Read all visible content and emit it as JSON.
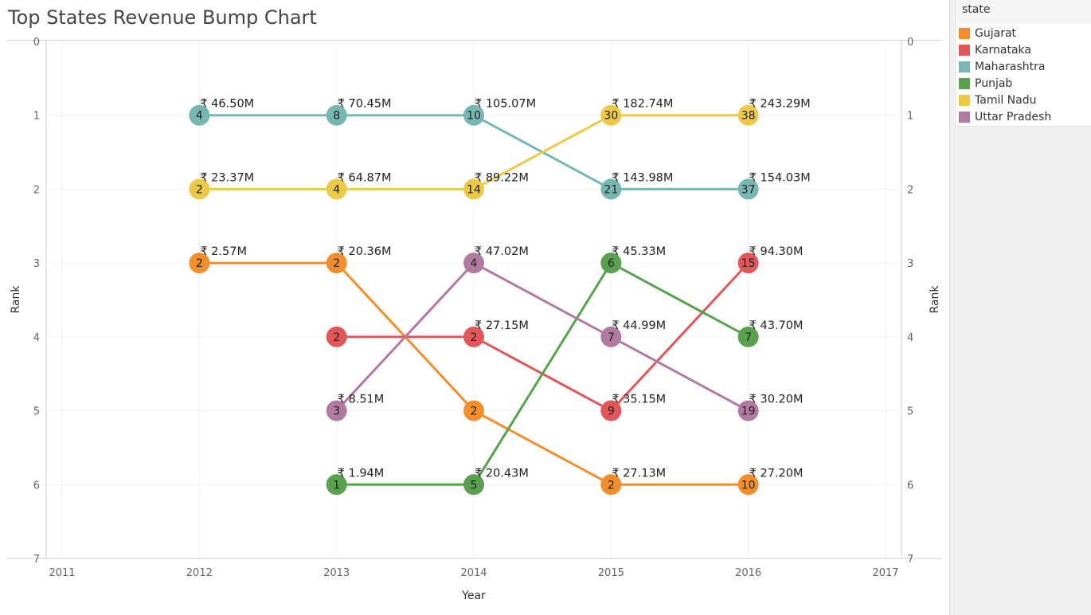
{
  "title": "Top States Revenue Bump Chart",
  "legend": {
    "title": "state",
    "items": [
      {
        "label": "Gujarat",
        "color": "#f28e2b"
      },
      {
        "label": "Karnataka",
        "color": "#e15759"
      },
      {
        "label": "Maharashtra",
        "color": "#76b7b2"
      },
      {
        "label": "Punjab",
        "color": "#59a14f"
      },
      {
        "label": "Tamil Nadu",
        "color": "#edc948"
      },
      {
        "label": "Uttar Pradesh",
        "color": "#b07aa1"
      }
    ]
  },
  "chart_data": {
    "type": "line",
    "xlabel": "Year",
    "ylabel": "Rank",
    "xlim": [
      2011,
      2017
    ],
    "ylim": [
      0,
      7
    ],
    "y_reversed": true,
    "dual_y_axis": true,
    "x_ticks": [
      "2011",
      "2012",
      "2013",
      "2014",
      "2015",
      "2016",
      "2017"
    ],
    "y_ticks": [
      "0",
      "1",
      "2",
      "3",
      "4",
      "5",
      "6",
      "7"
    ],
    "grid": true,
    "legend_position": "right",
    "series": [
      {
        "name": "Gujarat",
        "points": [
          {
            "x": 2012,
            "rank": 3,
            "count": "2",
            "revenue": "₹ 2.57M"
          },
          {
            "x": 2013,
            "rank": 3,
            "count": "2",
            "revenue": "₹ 20.36M"
          },
          {
            "x": 2014,
            "rank": 5,
            "count": "2",
            "revenue": ""
          },
          {
            "x": 2015,
            "rank": 6,
            "count": "2",
            "revenue": "₹ 27.13M"
          },
          {
            "x": 2016,
            "rank": 6,
            "count": "10",
            "revenue": "₹ 27.20M"
          }
        ]
      },
      {
        "name": "Karnataka",
        "points": [
          {
            "x": 2013,
            "rank": 4,
            "count": "2",
            "revenue": ""
          },
          {
            "x": 2014,
            "rank": 4,
            "count": "2",
            "revenue": "₹ 27.15M"
          },
          {
            "x": 2015,
            "rank": 5,
            "count": "9",
            "revenue": "₹ 35.15M"
          },
          {
            "x": 2016,
            "rank": 3,
            "count": "15",
            "revenue": "₹ 94.30M"
          }
        ]
      },
      {
        "name": "Maharashtra",
        "points": [
          {
            "x": 2012,
            "rank": 1,
            "count": "4",
            "revenue": "₹ 46.50M"
          },
          {
            "x": 2013,
            "rank": 1,
            "count": "8",
            "revenue": "₹ 70.45M"
          },
          {
            "x": 2014,
            "rank": 1,
            "count": "10",
            "revenue": "₹ 105.07M"
          },
          {
            "x": 2015,
            "rank": 2,
            "count": "21",
            "revenue": "₹ 143.98M"
          },
          {
            "x": 2016,
            "rank": 2,
            "count": "37",
            "revenue": "₹ 154.03M"
          }
        ]
      },
      {
        "name": "Punjab",
        "points": [
          {
            "x": 2013,
            "rank": 6,
            "count": "1",
            "revenue": "₹ 1.94M"
          },
          {
            "x": 2014,
            "rank": 6,
            "count": "5",
            "revenue": "₹ 20.43M"
          },
          {
            "x": 2015,
            "rank": 3,
            "count": "6",
            "revenue": "₹ 45.33M"
          },
          {
            "x": 2016,
            "rank": 4,
            "count": "7",
            "revenue": "₹ 43.70M"
          }
        ]
      },
      {
        "name": "Tamil Nadu",
        "points": [
          {
            "x": 2012,
            "rank": 2,
            "count": "2",
            "revenue": "₹ 23.37M"
          },
          {
            "x": 2013,
            "rank": 2,
            "count": "4",
            "revenue": "₹ 64.87M"
          },
          {
            "x": 2014,
            "rank": 2,
            "count": "14",
            "revenue": "₹ 89.22M"
          },
          {
            "x": 2015,
            "rank": 1,
            "count": "30",
            "revenue": "₹ 182.74M"
          },
          {
            "x": 2016,
            "rank": 1,
            "count": "38",
            "revenue": "₹ 243.29M"
          }
        ]
      },
      {
        "name": "Uttar Pradesh",
        "points": [
          {
            "x": 2013,
            "rank": 5,
            "count": "3",
            "revenue": "₹ 8.51M"
          },
          {
            "x": 2014,
            "rank": 3,
            "count": "4",
            "revenue": "₹ 47.02M"
          },
          {
            "x": 2015,
            "rank": 4,
            "count": "7",
            "revenue": "₹ 44.99M"
          },
          {
            "x": 2016,
            "rank": 5,
            "count": "19",
            "revenue": "₹ 30.20M"
          }
        ]
      }
    ]
  }
}
